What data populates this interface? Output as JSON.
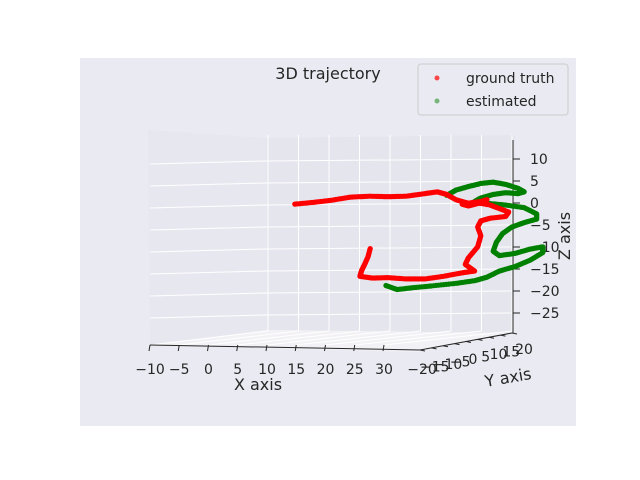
{
  "chart_data": {
    "type": "scatter",
    "projection": "3d",
    "title": "3D trajectory",
    "xlabel": "X axis",
    "ylabel": "Y axis",
    "zlabel": "Z axis",
    "x_ticks": [
      "−10",
      "−5",
      "0",
      "5",
      "10",
      "15",
      "20",
      "25",
      "30"
    ],
    "y_ticks": [
      "−20",
      "−15",
      "−10",
      "−5",
      "0",
      "5",
      "10",
      "15",
      "20"
    ],
    "z_ticks": [
      "10",
      "5",
      "0",
      "−5",
      "−10",
      "−15",
      "−20",
      "−25"
    ],
    "legend_position": "top-right",
    "grid": true,
    "series": [
      {
        "name": "ground truth",
        "color": "#ff0000",
        "points": [
          [
            -6,
            0,
            0.2
          ],
          [
            -3,
            0,
            0.6
          ],
          [
            0,
            0,
            1.1
          ],
          [
            3,
            0,
            1.8
          ],
          [
            6,
            0,
            2.0
          ],
          [
            9,
            0,
            1.9
          ],
          [
            12,
            0,
            2.0
          ],
          [
            15,
            0,
            2.6
          ],
          [
            17,
            0,
            3.0
          ],
          [
            18.5,
            0,
            2.4
          ],
          [
            20,
            0,
            1.2
          ],
          [
            22,
            0,
            0.4
          ],
          [
            24,
            0,
            0.8
          ],
          [
            25,
            0,
            1.2
          ],
          [
            24,
            0,
            0.5
          ],
          [
            22,
            0,
            -0.2
          ],
          [
            21,
            0,
            0.2
          ],
          [
            23,
            0,
            0.6
          ],
          [
            25.5,
            0,
            0.0
          ],
          [
            27,
            0,
            -0.8
          ],
          [
            28.5,
            0,
            -1.6
          ],
          [
            28,
            0,
            -2.6
          ],
          [
            25.5,
            0,
            -3.0
          ],
          [
            24,
            0,
            -3.6
          ],
          [
            23.5,
            0,
            -5.0
          ],
          [
            24,
            0,
            -7.0
          ],
          [
            23.5,
            0,
            -9.5
          ],
          [
            22,
            0,
            -12.0
          ],
          [
            21.5,
            0,
            -13.5
          ],
          [
            23,
            0,
            -15.0
          ],
          [
            21,
            0,
            -15.4
          ],
          [
            18,
            0,
            -16.2
          ],
          [
            15,
            0,
            -16.8
          ],
          [
            12,
            0,
            -16.8
          ],
          [
            9,
            0,
            -16.5
          ],
          [
            6.5,
            0,
            -16.6
          ],
          [
            4.5,
            0,
            -16.2
          ],
          [
            4.8,
            0,
            -14.8
          ],
          [
            5.2,
            0,
            -13.7
          ],
          [
            5.8,
            0,
            -11.8
          ],
          [
            6.2,
            0,
            -9.7
          ]
        ]
      },
      {
        "name": "estimated",
        "color": "#008000",
        "points": [
          [
            18.5,
            0,
            2.2
          ],
          [
            20,
            0,
            3.4
          ],
          [
            22,
            0,
            4.2
          ],
          [
            24,
            0,
            4.9
          ],
          [
            26,
            0,
            5.2
          ],
          [
            28,
            0,
            4.7
          ],
          [
            30,
            0,
            3.8
          ],
          [
            31,
            0,
            3.0
          ],
          [
            30,
            0,
            2.6
          ],
          [
            28,
            0,
            2.8
          ],
          [
            26,
            0,
            2.4
          ],
          [
            24,
            0,
            1.6
          ],
          [
            23,
            0,
            0.8
          ],
          [
            25,
            0,
            0.4
          ],
          [
            28,
            0,
            0.0
          ],
          [
            31,
            0,
            -0.6
          ],
          [
            33,
            0,
            -2.0
          ],
          [
            33,
            0,
            -3.2
          ],
          [
            31,
            0,
            -4.0
          ],
          [
            29,
            0,
            -5.0
          ],
          [
            27.5,
            0,
            -6.5
          ],
          [
            26.5,
            0,
            -8.5
          ],
          [
            26,
            0,
            -10.5
          ],
          [
            27,
            0,
            -11.5
          ],
          [
            29.5,
            0,
            -11.0
          ],
          [
            32,
            0,
            -10.0
          ],
          [
            34,
            0,
            -9.5
          ],
          [
            34,
            0,
            -10.8
          ],
          [
            32,
            0,
            -12.5
          ],
          [
            29.5,
            0,
            -14.0
          ],
          [
            27,
            0,
            -15.0
          ],
          [
            25,
            0,
            -16.4
          ],
          [
            23,
            0,
            -17.2
          ],
          [
            20,
            0,
            -17.8
          ],
          [
            16,
            0,
            -18.4
          ],
          [
            13,
            0,
            -18.8
          ],
          [
            10.5,
            0,
            -19.2
          ],
          [
            8.5,
            0,
            -18.2
          ]
        ]
      }
    ]
  },
  "colors": {
    "figure_background": "#ffffff",
    "axes_background": "#eaeaf2",
    "pane_left": "#e7e7ef",
    "pane_back": "#e5e5ed",
    "pane_floor": "#f2f2f6",
    "grid": "#ffffff",
    "text": "#262626"
  }
}
